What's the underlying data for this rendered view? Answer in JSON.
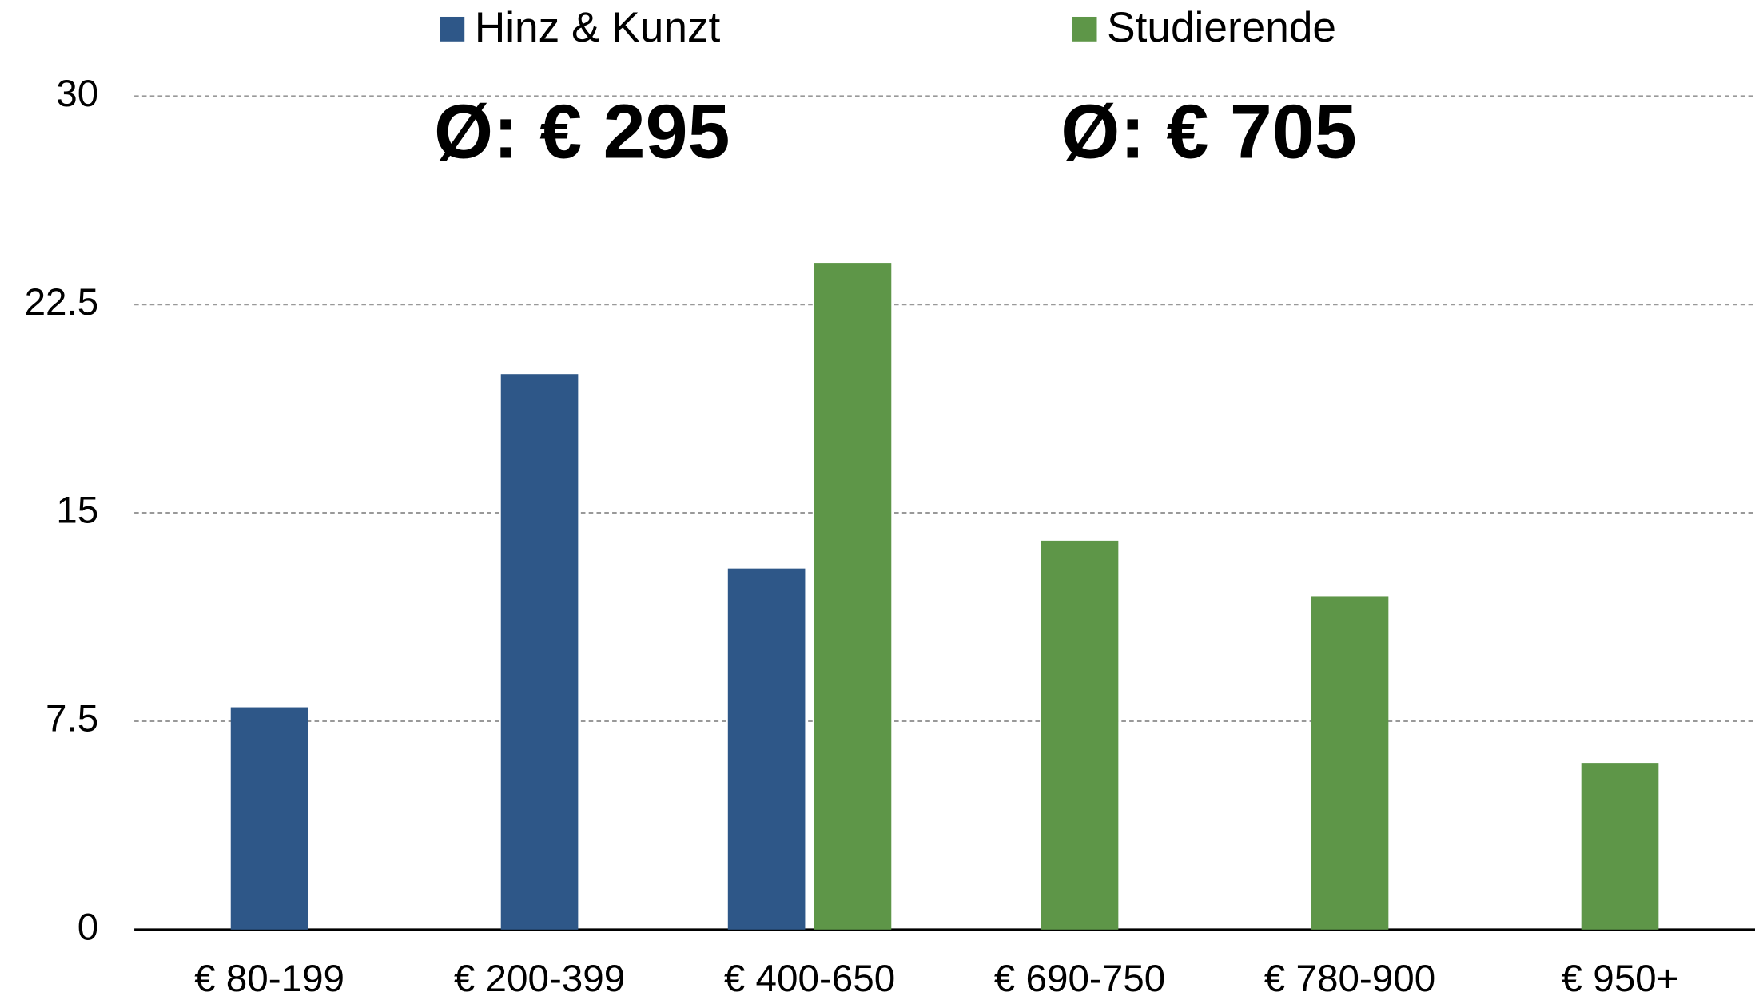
{
  "chart_data": {
    "type": "bar",
    "categories": [
      "€ 80-199",
      "€ 200-399",
      "€ 400-650",
      "€ 690-750",
      "€ 780-900",
      "€ 950+"
    ],
    "series": [
      {
        "name": "Hinz & Kunzt",
        "color": "#2e5788",
        "values": [
          8,
          20,
          13,
          null,
          null,
          null
        ]
      },
      {
        "name": "Studierende",
        "color": "#5e9648",
        "values": [
          null,
          null,
          24,
          14,
          12,
          6
        ]
      }
    ],
    "annotations": [
      "Ø: € 295",
      "Ø: € 705"
    ],
    "ylim": [
      0,
      30
    ],
    "yticks": [
      0,
      7.5,
      15,
      22.5,
      30
    ],
    "grid": true,
    "legend": "top"
  }
}
